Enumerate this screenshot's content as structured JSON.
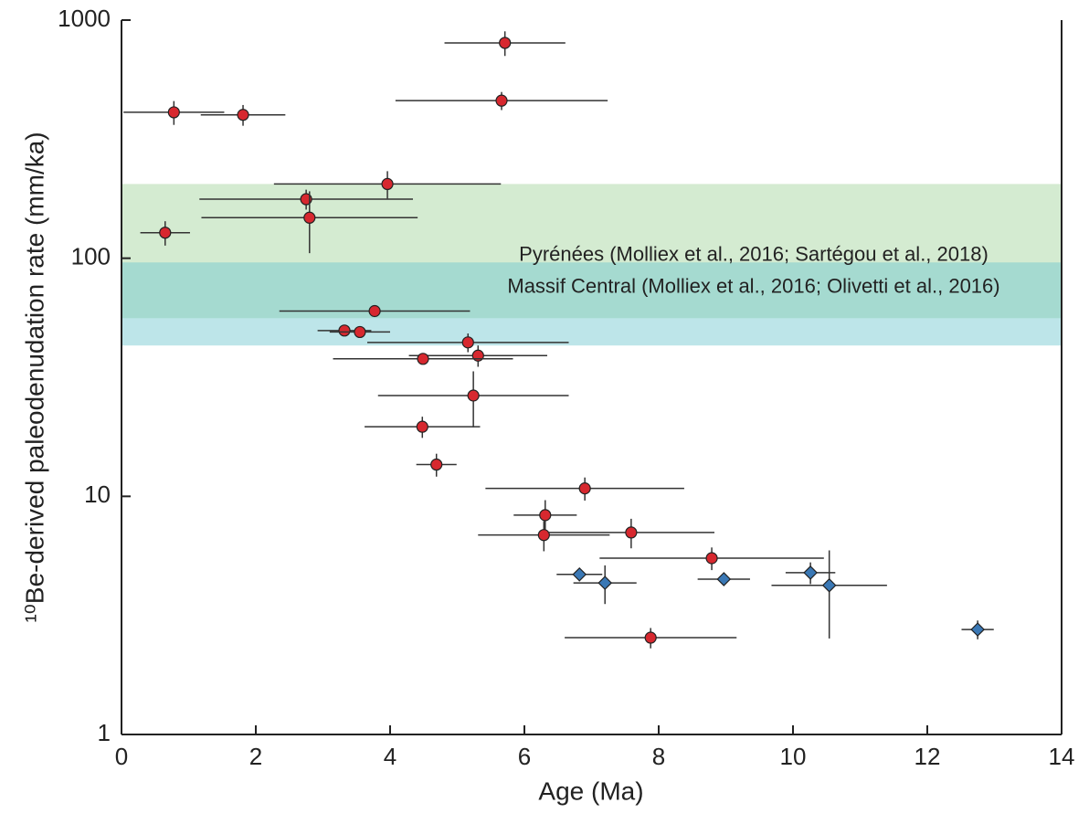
{
  "chart_data": {
    "type": "scatter",
    "xlabel": "Age (Ma)",
    "ylabel": "¹⁰Be-derived paleodenudation rate (mm/ka)",
    "xlim": [
      0,
      14
    ],
    "xticks": [
      0,
      2,
      4,
      6,
      8,
      10,
      12,
      14
    ],
    "ylim": [
      1,
      1000
    ],
    "yticks": [
      1,
      10,
      100,
      1000
    ],
    "yscale": "log",
    "bands": [
      {
        "label": "Pyrénées (Molliex et al., 2016; Sartégou et al., 2018)",
        "ymin": 56,
        "ymax": 205,
        "color": "#9fd39a"
      },
      {
        "label": "Massif Central (Molliex et al., 2016; Olivetti et al., 2016)",
        "ymin": 43,
        "ymax": 96,
        "color": "#6cc6cf"
      }
    ],
    "series": [
      {
        "color": "#d7282f",
        "marker": "circle",
        "x": [
          5.71,
          0.78,
          1.81,
          5.66,
          3.96,
          2.75,
          2.8,
          0.65,
          3.77,
          3.32,
          3.55,
          5.16,
          5.31,
          4.49,
          5.24,
          4.48,
          4.69,
          6.9,
          6.31,
          6.29,
          7.59,
          8.79,
          7.88
        ],
        "y": [
          802,
          410,
          400,
          459,
          205,
          177,
          148,
          128,
          60,
          49.7,
          49,
          44.3,
          39,
          37.8,
          26.5,
          19.6,
          13.6,
          10.8,
          8.34,
          6.88,
          7.05,
          5.5,
          2.55
        ],
        "x_err": [
          0.9,
          0.75,
          0.63,
          1.58,
          1.69,
          1.59,
          1.61,
          0.37,
          1.42,
          0.4,
          0.45,
          1.5,
          1.03,
          1.34,
          1.42,
          0.86,
          0.3,
          1.48,
          0.47,
          0.98,
          1.24,
          1.67,
          1.28
        ],
        "y_err": [
          95,
          47,
          40,
          40,
          27,
          17,
          43,
          15,
          3,
          0,
          0,
          4,
          4,
          2,
          7,
          2,
          1.5,
          1.2,
          1.3,
          1,
          1,
          0.6,
          0.25
        ]
      },
      {
        "color": "#3a78b5",
        "marker": "diamond",
        "x": [
          6.82,
          7.2,
          8.97,
          10.26,
          10.54,
          12.75
        ],
        "y": [
          4.7,
          4.33,
          4.49,
          4.78,
          4.23,
          2.76
        ],
        "x_err": [
          0.34,
          0.47,
          0.39,
          0.37,
          0.86,
          0.24
        ],
        "y_err": [
          0.3,
          0.8,
          0,
          0.5,
          1.7,
          0.25
        ]
      }
    ]
  }
}
